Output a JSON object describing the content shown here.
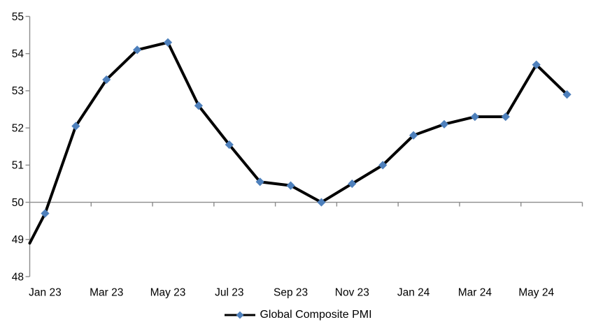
{
  "chart_data": {
    "type": "line",
    "title": "",
    "xlabel": "",
    "ylabel": "",
    "categories": [
      "Jan 23",
      "Feb 23",
      "Mar 23",
      "Apr 23",
      "May 23",
      "Jun 23",
      "Jul 23",
      "Aug 23",
      "Sep 23",
      "Oct 23",
      "Nov 23",
      "Dec 23",
      "Jan 24",
      "Feb 24",
      "Mar 24",
      "Apr 24",
      "May 24",
      "Jun 24"
    ],
    "series": [
      {
        "name": "Global Composite PMI",
        "values": [
          49.7,
          52.05,
          53.3,
          54.1,
          54.3,
          52.6,
          51.55,
          50.55,
          50.45,
          50.0,
          50.5,
          51.0,
          51.8,
          52.1,
          52.3,
          52.3,
          53.7,
          52.9
        ],
        "line_color": "#000000",
        "marker": "diamond",
        "marker_color": "#4E80BC"
      }
    ],
    "lead_in_axis_value": 48.9,
    "ylim": [
      48,
      55
    ],
    "ytick_step": 1,
    "ytick_labels": [
      "48",
      "49",
      "50",
      "51",
      "52",
      "53",
      "54",
      "55"
    ],
    "xtick_labels": [
      "Jan 23",
      "Mar 23",
      "May 23",
      "Jul 23",
      "Sep 23",
      "Nov 23",
      "Jan 24",
      "Mar 24",
      "May 24"
    ],
    "x_axis_crosses_at": 50,
    "axis_color": "#8C8C8C",
    "grid": false,
    "legend_position": "bottom"
  }
}
